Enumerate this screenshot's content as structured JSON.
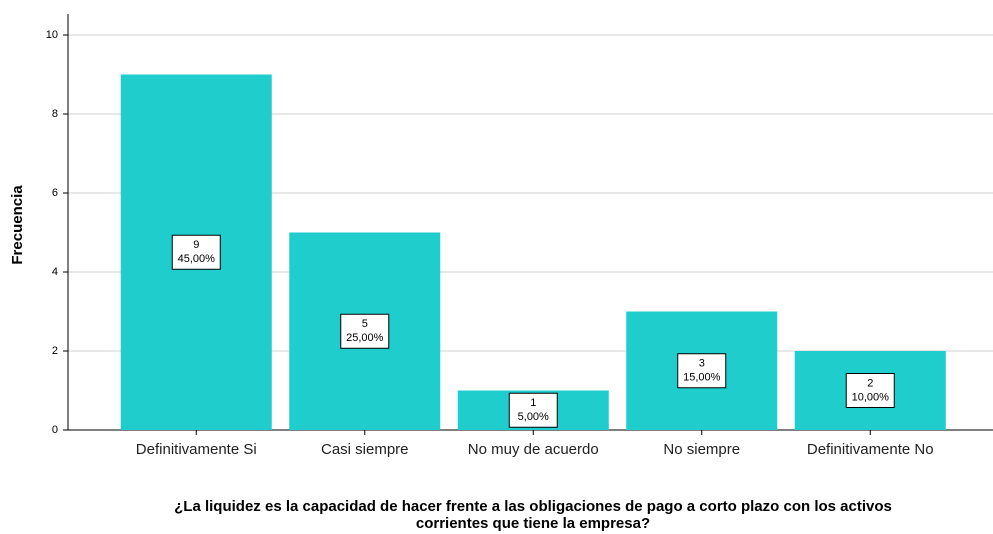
{
  "chart_data": {
    "type": "bar",
    "categories": [
      "Definitivamente Si",
      "Casi siempre",
      "No muy de acuerdo",
      "No siempre",
      "Definitivamente No"
    ],
    "values": [
      9,
      5,
      1,
      3,
      2
    ],
    "percentages": [
      45,
      25,
      5,
      15,
      10
    ],
    "percentage_labels": [
      "45,00%",
      "25,00%",
      "5,00%",
      "15,00%",
      "10,00%"
    ],
    "color": "#1fcdcd",
    "ylim": [
      0,
      10
    ],
    "yticks": [
      0,
      2,
      4,
      6,
      8,
      10
    ],
    "grid": true,
    "y_label": "Frecuencia",
    "x_label": [
      "¿La liquidez es la capacidad de hacer frente a las obligaciones de pago a corto plazo con los activos",
      "corrientes que tiene la empresa?"
    ]
  }
}
